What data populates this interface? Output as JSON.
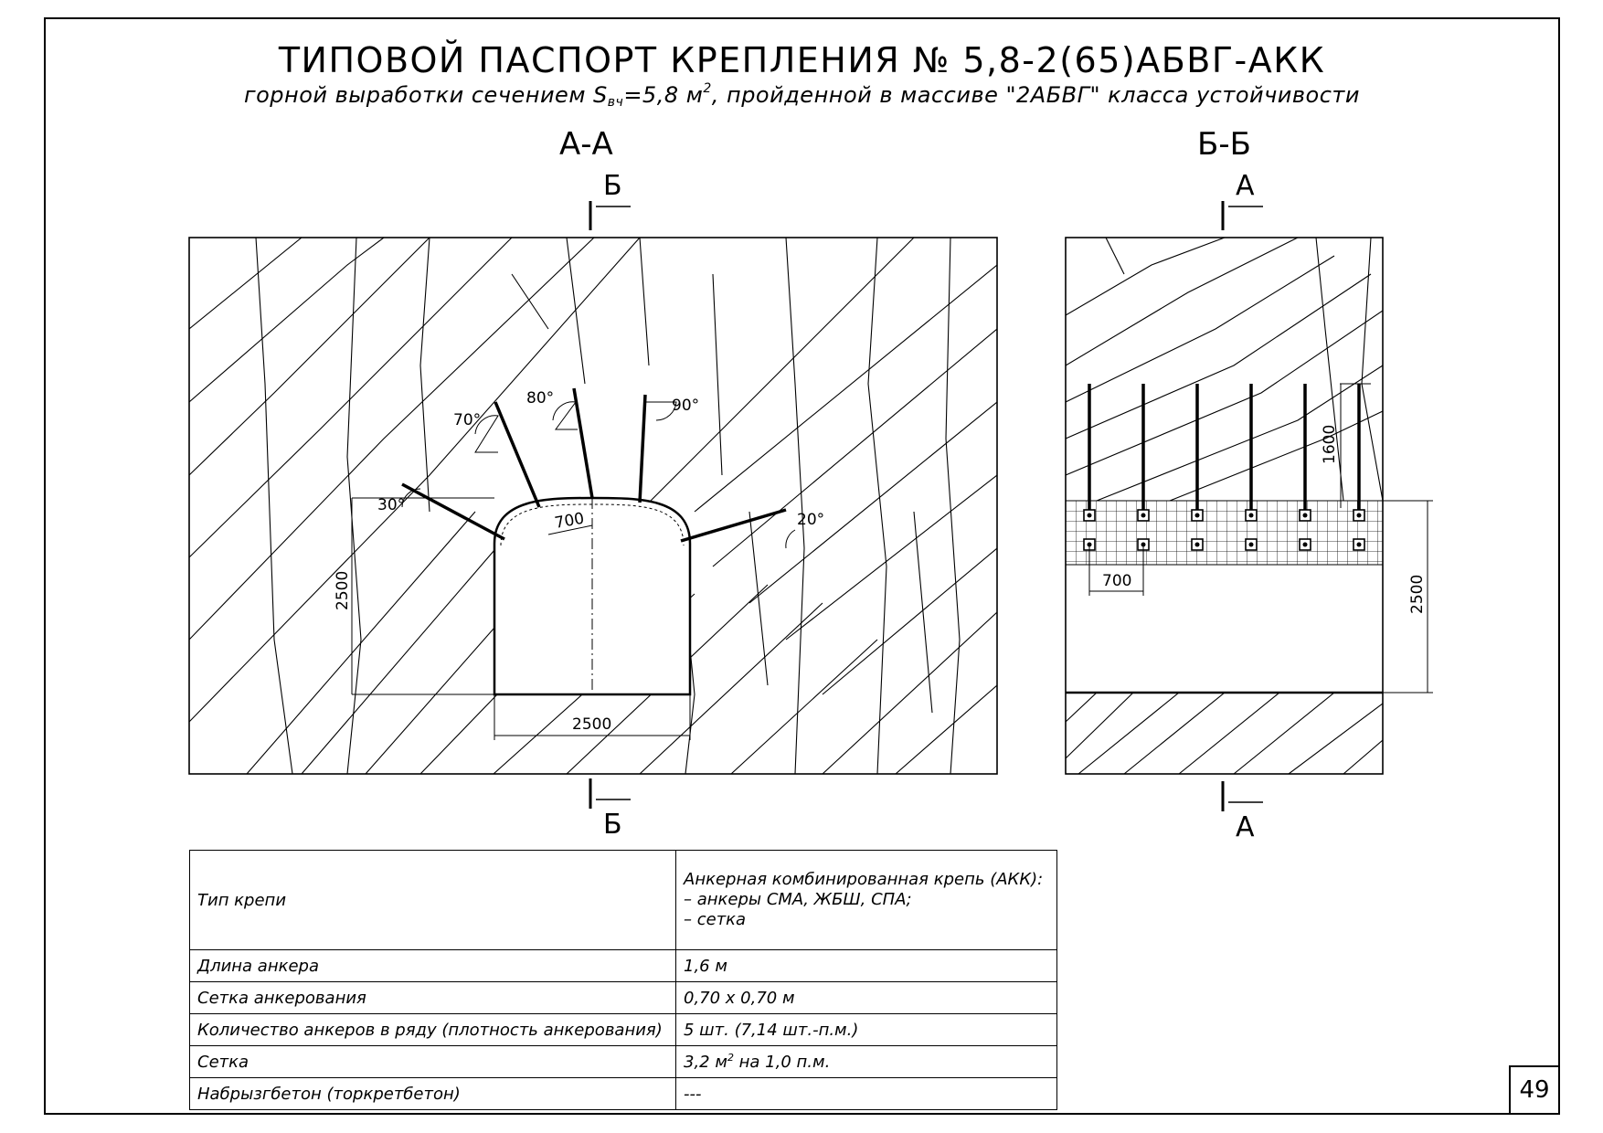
{
  "title": "ТИПОВОЙ ПАСПОРТ КРЕПЛЕНИЯ № 5,8-2(65)АБВГ-АКК",
  "subtitle": {
    "pre": "горной выработки сечением S",
    "sub": "вч",
    "mid": "=5,8 м",
    "sup": "2",
    "post": ", пройденной в массиве \"2АБВГ\" класса устойчивости"
  },
  "section_aa": {
    "title": "А-А",
    "cut_label_top": "Б",
    "cut_label_bottom": "Б",
    "angles": [
      "70°",
      "80°",
      "90°",
      "30°",
      "20°"
    ],
    "dim_spacing": "700",
    "dim_height": "2500",
    "dim_width": "2500"
  },
  "section_bb": {
    "title": "Б-Б",
    "cut_label_top": "А",
    "cut_label_bottom": "А",
    "dim_anchor_length": "1600",
    "dim_spacing": "700",
    "dim_height": "2500",
    "anchor_count": 6
  },
  "table": {
    "rows": [
      {
        "label": "Тип крепи",
        "value_lines": [
          "Анкерная комбинированная крепь (АКК):",
          "– анкеры СМА, ЖБШ, СПА;",
          "– сетка"
        ]
      },
      {
        "label": "Длина анкера",
        "value": "1,6 м"
      },
      {
        "label": "Сетка анкерования",
        "value": "0,70 х 0,70 м"
      },
      {
        "label": "Количество анкеров в ряду (плотность анкерования)",
        "value": "5 шт. (7,14 шт.-п.м.)"
      },
      {
        "label": "Сетка",
        "value_pre": "3,2 м",
        "value_sup": "2",
        "value_post": " на 1,0 п.м."
      },
      {
        "label": "Набрызгбетон (торкретбетон)",
        "value": "---"
      }
    ]
  },
  "page_number": "49"
}
